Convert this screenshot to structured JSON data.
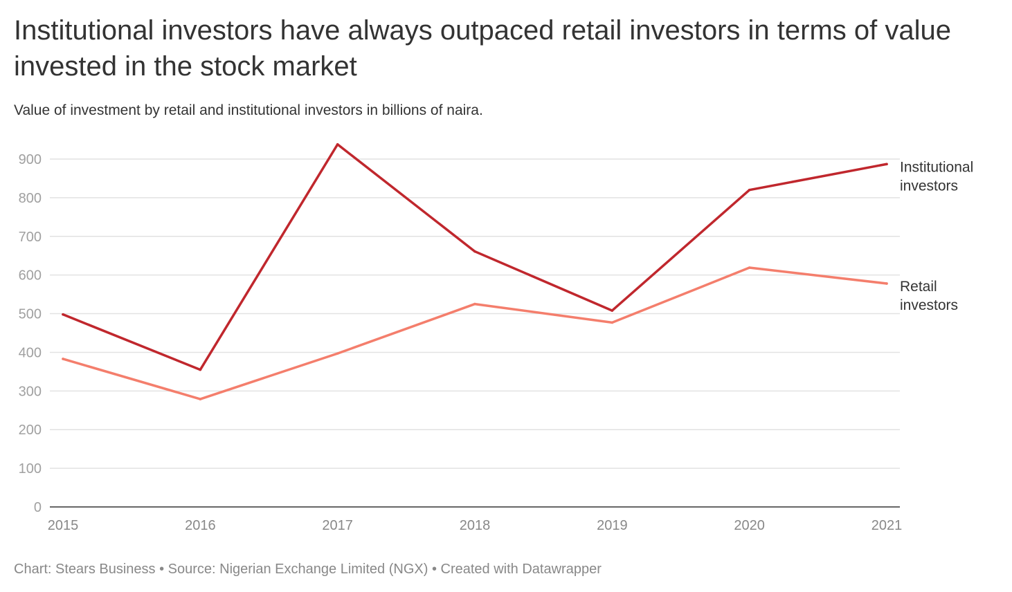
{
  "title": "Institutional investors have always outpaced retail investors in terms of value invested in the stock market",
  "subtitle": "Value of investment by retail and institutional investors in billions of naira.",
  "footer": {
    "chart_credit": "Chart: Stears Business",
    "separator": " • ",
    "source": "Source: Nigerian Exchange Limited (NGX)",
    "created_with": "Created with Datawrapper"
  },
  "chart_data": {
    "type": "line",
    "title": "Institutional investors have always outpaced retail investors in terms of value invested in the stock market",
    "subtitle": "Value of investment by retail and institutional investors in billions of naira.",
    "xlabel": "",
    "ylabel": "",
    "x": [
      "2015",
      "2016",
      "2017",
      "2018",
      "2019",
      "2020",
      "2021"
    ],
    "ylim": [
      0,
      900
    ],
    "yticks": [
      0,
      100,
      200,
      300,
      400,
      500,
      600,
      700,
      800,
      900
    ],
    "grid": true,
    "legend": "direct labels at right end of lines",
    "series": [
      {
        "name": "Institutional investors",
        "label_lines": [
          "Institutional",
          "investors"
        ],
        "color": "#c0272d",
        "values": [
          498,
          355,
          938,
          661,
          508,
          820,
          887
        ]
      },
      {
        "name": "Retail investors",
        "label_lines": [
          "Retail",
          "investors"
        ],
        "color": "#f47e6c",
        "values": [
          383,
          279,
          397,
          525,
          477,
          619,
          578
        ]
      }
    ]
  }
}
